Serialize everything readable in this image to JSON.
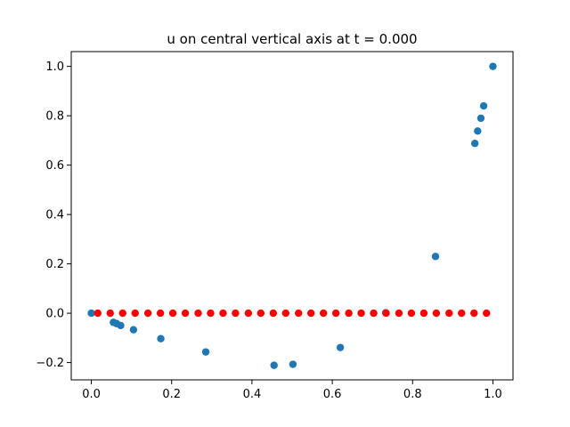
{
  "chart_data": {
    "type": "scatter",
    "title": "u on central vertical axis at t = 0.000",
    "xlabel": "",
    "ylabel": "",
    "xlim": [
      -0.05,
      1.05
    ],
    "ylim": [
      -0.27,
      1.06
    ],
    "grid": false,
    "x_ticks": [
      0.0,
      0.2,
      0.4,
      0.6,
      0.8,
      1.0
    ],
    "x_tick_labels": [
      "0.0",
      "0.2",
      "0.4",
      "0.6",
      "0.8",
      "1.0"
    ],
    "y_ticks": [
      -0.2,
      0.0,
      0.2,
      0.4,
      0.6,
      0.8,
      1.0
    ],
    "y_tick_labels": [
      "−0.2",
      "0.0",
      "0.2",
      "0.4",
      "0.6",
      "0.8",
      "1.0"
    ],
    "series": [
      {
        "color": "#1f77b4",
        "points": [
          [
            0.0,
            0.0
          ],
          [
            0.055,
            -0.037
          ],
          [
            0.063,
            -0.042
          ],
          [
            0.073,
            -0.05
          ],
          [
            0.105,
            -0.067
          ],
          [
            0.173,
            -0.103
          ],
          [
            0.285,
            -0.157
          ],
          [
            0.455,
            -0.211
          ],
          [
            0.502,
            -0.207
          ],
          [
            0.62,
            -0.139
          ],
          [
            0.733,
            0.002
          ],
          [
            0.857,
            0.23
          ],
          [
            0.955,
            0.688
          ],
          [
            0.962,
            0.738
          ],
          [
            0.97,
            0.79
          ],
          [
            0.977,
            0.84
          ],
          [
            1.0,
            1.0
          ]
        ]
      },
      {
        "color": "#ff0000",
        "points": [
          [
            0.016,
            0
          ],
          [
            0.047,
            0
          ],
          [
            0.078,
            0
          ],
          [
            0.109,
            0
          ],
          [
            0.141,
            0
          ],
          [
            0.172,
            0
          ],
          [
            0.203,
            0
          ],
          [
            0.234,
            0
          ],
          [
            0.266,
            0
          ],
          [
            0.297,
            0
          ],
          [
            0.328,
            0
          ],
          [
            0.359,
            0
          ],
          [
            0.391,
            0
          ],
          [
            0.422,
            0
          ],
          [
            0.453,
            0
          ],
          [
            0.484,
            0
          ],
          [
            0.516,
            0
          ],
          [
            0.547,
            0
          ],
          [
            0.578,
            0
          ],
          [
            0.609,
            0
          ],
          [
            0.641,
            0
          ],
          [
            0.672,
            0
          ],
          [
            0.703,
            0
          ],
          [
            0.734,
            0
          ],
          [
            0.766,
            0
          ],
          [
            0.797,
            0
          ],
          [
            0.828,
            0
          ],
          [
            0.859,
            0
          ],
          [
            0.891,
            0
          ],
          [
            0.922,
            0
          ],
          [
            0.953,
            0
          ],
          [
            0.984,
            0
          ]
        ]
      }
    ]
  }
}
